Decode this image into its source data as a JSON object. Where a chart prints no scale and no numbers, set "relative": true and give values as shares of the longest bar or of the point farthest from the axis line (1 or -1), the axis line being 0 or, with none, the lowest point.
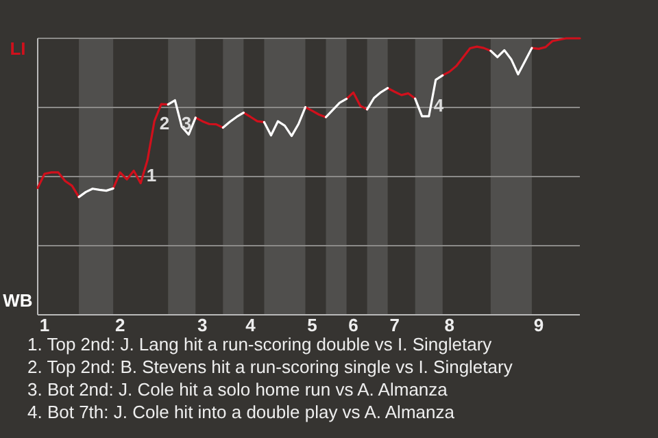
{
  "chart_data": {
    "type": "line",
    "relative": true,
    "grid": true,
    "categories": [
      null,
      "1",
      null,
      null,
      null,
      null,
      null,
      null,
      null,
      null,
      null,
      null,
      "2",
      null,
      null,
      null,
      null,
      null,
      null,
      null,
      null,
      null,
      null,
      null,
      "3",
      null,
      null,
      null,
      null,
      null,
      null,
      "4",
      null,
      null,
      null,
      null,
      null,
      null,
      null,
      null,
      "5",
      null,
      null,
      null,
      null,
      null,
      "6",
      null,
      null,
      null,
      null,
      null,
      "7",
      null,
      null,
      null,
      null,
      null,
      null,
      null,
      "8",
      null,
      null,
      null,
      null,
      null,
      null,
      null,
      null,
      null,
      null,
      null,
      null,
      "9",
      null,
      null,
      null,
      null,
      null,
      null
    ],
    "series": [
      {
        "name": "LI",
        "color": "#d0101c",
        "values": [
          0.459,
          0.51,
          0.515,
          0.515,
          0.484,
          0.467,
          0.426,
          null,
          null,
          null,
          null,
          0.457,
          0.515,
          0.49,
          0.521,
          0.476,
          0.56,
          0.7,
          0.762,
          0.761,
          null,
          null,
          null,
          0.713,
          0.7,
          0.69,
          0.689,
          0.677,
          null,
          null,
          0.731,
          0.716,
          0.7,
          0.697,
          null,
          null,
          null,
          null,
          null,
          0.751,
          0.738,
          0.724,
          0.715,
          null,
          null,
          0.781,
          0.804,
          0.756,
          0.743,
          null,
          null,
          0.82,
          0.807,
          0.795,
          0.801,
          0.782,
          null,
          null,
          null,
          0.866,
          0.879,
          0.9,
          0.932,
          0.964,
          0.97,
          0.965,
          0.955,
          null,
          null,
          null,
          null,
          null,
          0.965,
          0.962,
          0.968,
          0.99,
          0.995,
          1,
          1,
          1
        ]
      },
      {
        "name": "WB",
        "color": "#ffffff",
        "values": [
          null,
          null,
          null,
          null,
          null,
          null,
          0.426,
          0.444,
          0.456,
          0.452,
          0.449,
          0.457,
          null,
          null,
          null,
          null,
          null,
          null,
          null,
          0.761,
          0.776,
          0.68,
          0.652,
          0.713,
          null,
          null,
          null,
          0.677,
          0.698,
          0.716,
          0.731,
          null,
          null,
          0.697,
          0.649,
          0.7,
          0.684,
          0.647,
          0.69,
          0.751,
          null,
          null,
          0.715,
          0.741,
          0.767,
          0.781,
          null,
          null,
          0.743,
          0.784,
          0.805,
          0.82,
          null,
          null,
          null,
          0.782,
          0.718,
          0.718,
          0.85,
          0.866,
          null,
          null,
          null,
          null,
          null,
          null,
          0.955,
          0.932,
          0.957,
          0.924,
          0.87,
          0.917,
          0.965,
          null,
          null,
          null,
          null,
          null,
          null,
          null
        ]
      }
    ],
    "annotations": [
      "1",
      "2",
      "3",
      "4",
      "1. Top 2nd: J. Lang hit a run-scoring double vs I. Singletary",
      "2. Top 2nd: B. Stevens hit a run-scoring single vs I. Singletary",
      "3. Bot 2nd: J. Cole hit a solo home run vs A. Almanza",
      "4. Bot 7th: J. Cole hit into a double play vs A. Almanza"
    ]
  }
}
